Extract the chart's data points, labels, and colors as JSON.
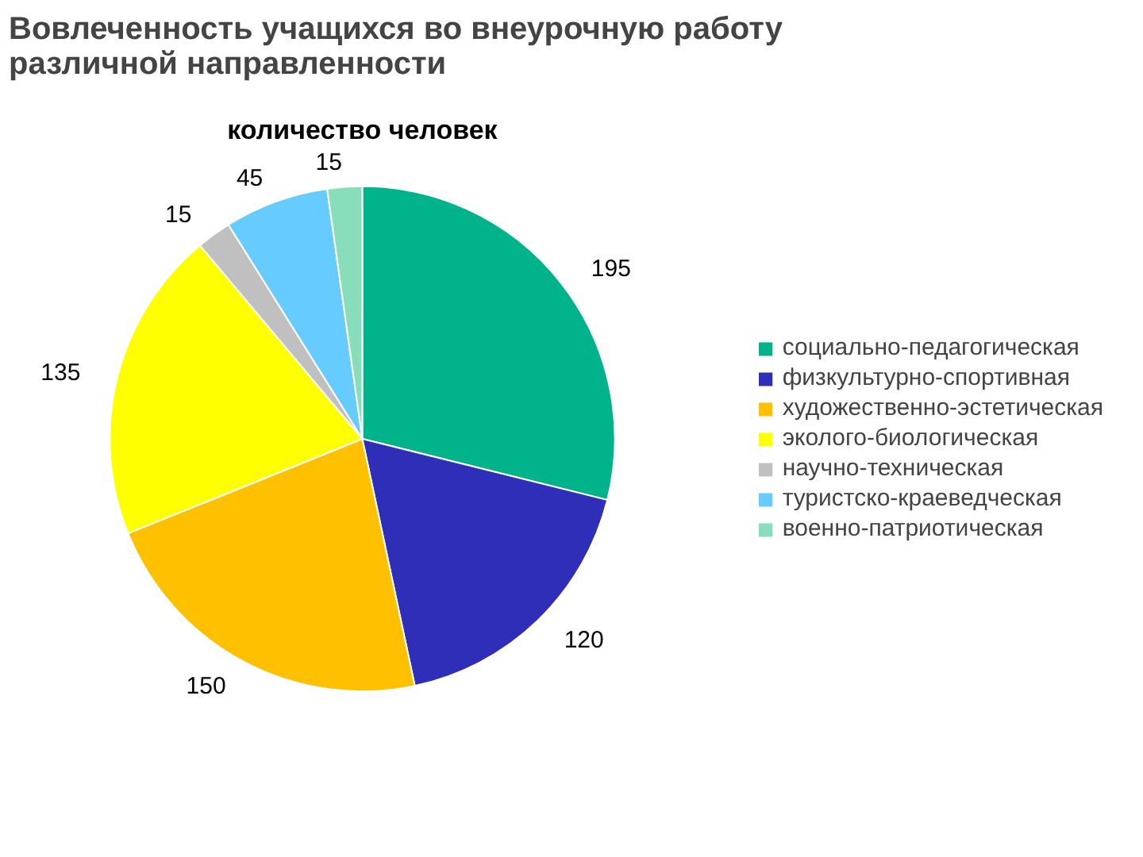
{
  "chart_data": {
    "type": "pie",
    "title": "Вовлеченность учащихся во внеурочную работу различной направленности",
    "subtitle": "количество человек",
    "categories": [
      "социально-педагогическая",
      "физкультурно-спортивная",
      "художественно-эстетическая",
      "эколого-биологическая",
      "научно-техническая",
      "туристско-краеведческая",
      "военно-патриотическая"
    ],
    "values": [
      195,
      120,
      150,
      135,
      15,
      45,
      15
    ],
    "colors": [
      "#00b38a",
      "#2e2eb8",
      "#ffc000",
      "#ffff00",
      "#c0c0c0",
      "#66ccff",
      "#88ddbb"
    ],
    "data_labels": true,
    "legend": "right"
  }
}
